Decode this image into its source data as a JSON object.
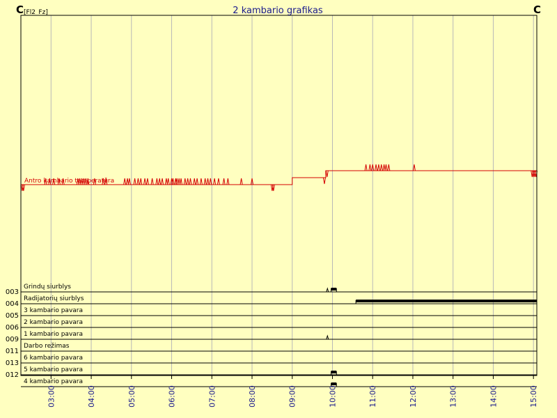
{
  "title": "2 kambario grafikas",
  "left_unit": "C",
  "left_unit_sub": "[Fl2_Fz]",
  "right_unit": "C",
  "colors": {
    "background": "#ffffc0",
    "grid": "#b8b8b8",
    "title": "#1a1a8c",
    "axis_text": "#1a1a8c",
    "temperature": "#d40000",
    "digital": "#000000",
    "border": "#000000"
  },
  "chart_data": {
    "type": "line",
    "x_unit": "time of day",
    "x_range": [
      "02:15",
      "15:05"
    ],
    "x_ticks": [
      "03:00",
      "04:00",
      "05:00",
      "06:00",
      "07:00",
      "08:00",
      "09:00",
      "10:00",
      "11:00",
      "12:00",
      "13:00",
      "14:00",
      "15:00"
    ],
    "grid": true,
    "analog_series": [
      {
        "name": "Antro kambario temperatūra",
        "color": "#d40000",
        "y_axis_labels": "none",
        "note": "step level (relative): 0 = base, 1 = upper level",
        "base_level": [
          [
            "02:15",
            0
          ],
          [
            "09:00",
            0
          ],
          [
            "09:00",
            0.8
          ],
          [
            "09:50",
            0.8
          ],
          [
            "09:50",
            1.6
          ],
          [
            "15:05",
            1.6
          ]
        ],
        "dips": [
          "02:17",
          "02:19",
          "08:30",
          "08:32",
          "09:48",
          "09:52",
          "14:58",
          "15:00",
          "15:02",
          "15:04"
        ],
        "spikes": [
          "02:52",
          "02:58",
          "03:04",
          "03:12",
          "03:18",
          "03:40",
          "03:43",
          "03:46",
          "03:49",
          "03:52",
          "03:55",
          "04:05",
          "04:18",
          "04:22",
          "04:50",
          "04:54",
          "04:57",
          "05:05",
          "05:10",
          "05:14",
          "05:20",
          "05:24",
          "05:31",
          "05:38",
          "05:42",
          "05:46",
          "05:52",
          "05:55",
          "06:00",
          "06:02",
          "06:06",
          "06:08",
          "06:11",
          "06:14",
          "06:20",
          "06:24",
          "06:28",
          "06:34",
          "06:38",
          "06:44",
          "06:50",
          "06:54",
          "06:58",
          "07:04",
          "07:10",
          "07:18",
          "07:24",
          "07:44",
          "08:00",
          "10:50",
          "10:56",
          "11:00",
          "11:05",
          "11:09",
          "11:13",
          "11:17",
          "11:20",
          "11:24",
          "12:02"
        ]
      }
    ],
    "digital_series": [
      {
        "code": "003",
        "name": "Grindų siurblys",
        "on": [
          [
            "09:52",
            "09:54"
          ],
          [
            "09:58",
            "10:06"
          ]
        ]
      },
      {
        "code": "004",
        "name": "Radijatorių siurblys",
        "on": [
          [
            "10:35",
            "15:05"
          ]
        ]
      },
      {
        "code": "005",
        "name": "3 kambario pavara",
        "on": []
      },
      {
        "code": "006",
        "name": "2 kambario pavara",
        "on": []
      },
      {
        "code": "009",
        "name": "1  kambario pavara",
        "on": [
          [
            "09:52",
            "09:53"
          ]
        ]
      },
      {
        "code": "011",
        "name": "Darbo režimas",
        "on": []
      },
      {
        "code": "013",
        "name": "6 kambario pavara",
        "on": []
      },
      {
        "code": "012",
        "name": "5 kambario pavara",
        "on": [
          [
            "09:58",
            "10:06"
          ]
        ]
      },
      {
        "code": "",
        "name": "4 kambario pavara",
        "on": [
          [
            "09:58",
            "10:06"
          ]
        ]
      }
    ]
  }
}
